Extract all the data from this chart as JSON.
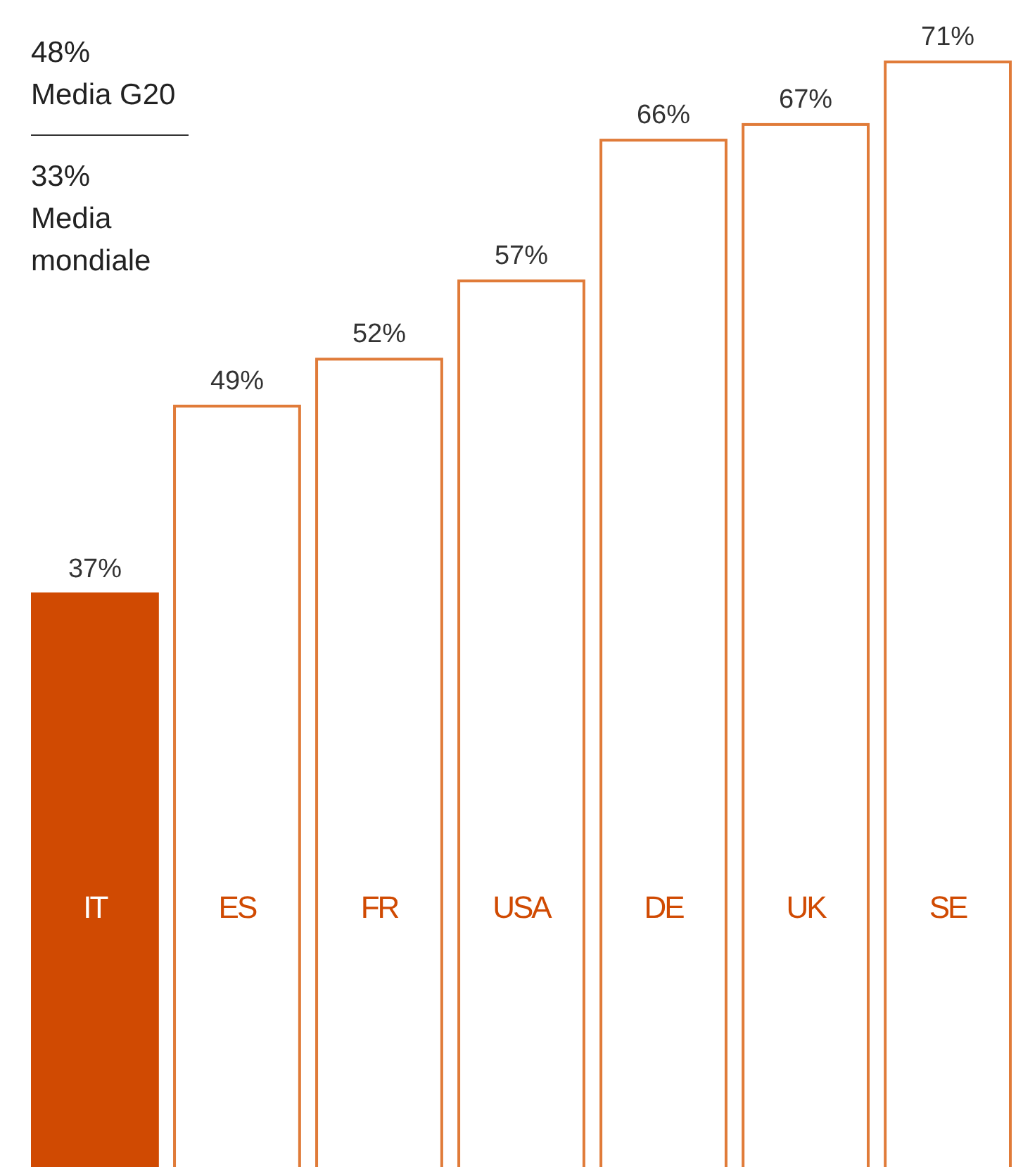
{
  "chart_data": {
    "type": "bar",
    "categories": [
      "IT",
      "ES",
      "FR",
      "USA",
      "DE",
      "UK",
      "SE"
    ],
    "values": [
      37,
      49,
      52,
      57,
      66,
      67,
      71
    ],
    "colors": [
      "#d04a02",
      "#ffffff",
      "#ffffff",
      "#ffffff",
      "#ffffff",
      "#ffffff",
      "#ffffff"
    ],
    "value_labels": [
      "37%",
      "49%",
      "52%",
      "57%",
      "66%",
      "67%",
      "71%"
    ],
    "annotations": [
      "48%\nMedia G20",
      "33%\nMedia\nmondiale"
    ]
  }
}
